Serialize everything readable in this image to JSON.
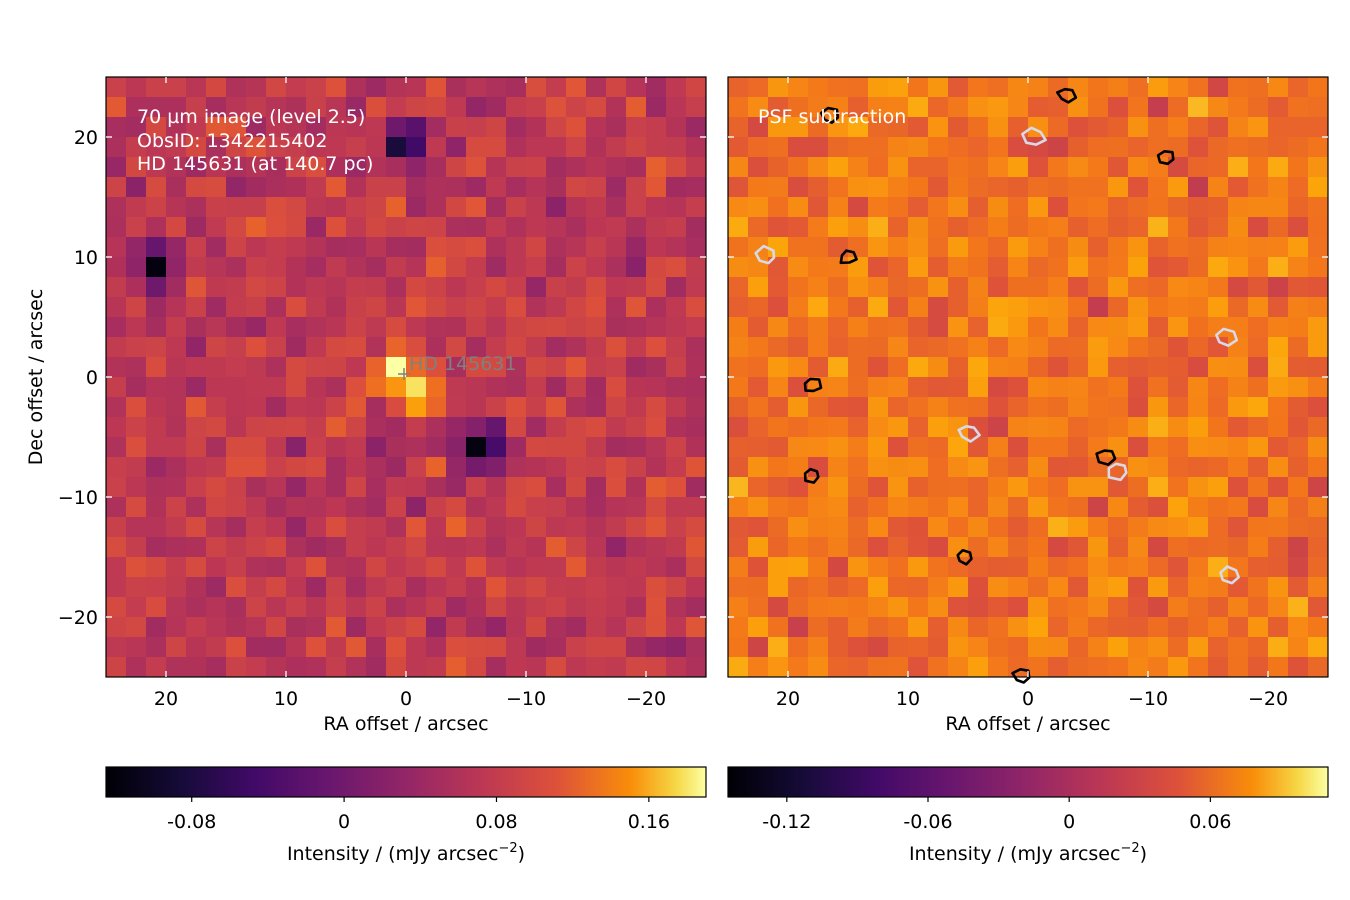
{
  "chart_data": [
    {
      "type": "heatmap",
      "title": "",
      "annotation_lines": [
        "70 µm image (level 2.5)",
        "ObsID: 1342215402",
        "HD 145631 (at 140.7 pc)"
      ],
      "star_marker_label": "HD 145631",
      "xlabel": "RA offset / arcsec",
      "ylabel": "Dec offset / arcsec",
      "xlim": [
        25,
        -25
      ],
      "ylim": [
        -25,
        25
      ],
      "xticks": [
        20,
        10,
        0,
        -10,
        -20
      ],
      "yticks": [
        20,
        10,
        0,
        -10,
        -20
      ],
      "xtick_labels": [
        "20",
        "10",
        "0",
        "−10",
        "−20"
      ],
      "ytick_labels": [
        "20",
        "10",
        "0",
        "−10",
        "−20"
      ],
      "grid_shape": [
        30,
        30
      ],
      "pixel_size_arcsec": 1.6,
      "colormap": "inferno",
      "colorbar": {
        "label": "Intensity / (mJy arcsec−2)",
        "label_text": "Intensity / (mJy arcsec",
        "label_superscript": "−2",
        "label_close": ")",
        "vmin": -0.125,
        "vmax": 0.19,
        "ticks": [
          -0.08,
          0,
          0.08,
          0.16
        ],
        "tick_labels": [
          "-0.08",
          "0",
          "0.08",
          "0.16"
        ]
      },
      "bright_features": [
        {
          "ra": 1.0,
          "dec": 0.5,
          "value": 0.17
        },
        {
          "ra": -1.0,
          "dec": -1.5,
          "value": 0.15
        }
      ],
      "dark_features": [
        {
          "ra": -6.5,
          "dec": -6.0,
          "value": -0.12
        },
        {
          "ra": 0.0,
          "dec": 19.5,
          "value": -0.1
        },
        {
          "ra": 21.0,
          "dec": 9.5,
          "value": -0.1
        }
      ]
    },
    {
      "type": "heatmap",
      "title": "",
      "annotation_lines": [
        "PSF subtraction"
      ],
      "xlabel": "RA offset / arcsec",
      "ylabel": "",
      "xlim": [
        25,
        -25
      ],
      "ylim": [
        -25,
        25
      ],
      "xticks": [
        20,
        10,
        0,
        -10,
        -20
      ],
      "yticks": [
        20,
        10,
        0,
        -10,
        -20
      ],
      "xtick_labels": [
        "20",
        "10",
        "0",
        "−10",
        "−20"
      ],
      "grid_shape": [
        30,
        30
      ],
      "pixel_size_arcsec": 1.6,
      "colormap": "inferno",
      "colorbar": {
        "label": "Intensity / (mJy arcsec−2)",
        "label_text": "Intensity / (mJy arcsec",
        "label_superscript": "−2",
        "label_close": ")",
        "vmin": -0.145,
        "vmax": 0.11,
        "ticks": [
          -0.12,
          -0.06,
          0,
          0.06
        ],
        "tick_labels": [
          "-0.12",
          "-0.06",
          "0",
          "0.06"
        ]
      },
      "contours": {
        "positive_color": "#000000",
        "negative_color": "#d8d8e6",
        "positive_centers": [
          {
            "ra": -3.2,
            "dec": 23.5
          },
          {
            "ra": 16.5,
            "dec": 21.8
          },
          {
            "ra": -11.5,
            "dec": 18.3
          },
          {
            "ra": 15.0,
            "dec": 10.0
          },
          {
            "ra": 18.0,
            "dec": -0.7
          },
          {
            "ra": 18.0,
            "dec": -8.2
          },
          {
            "ra": -6.5,
            "dec": -6.6
          },
          {
            "ra": 5.3,
            "dec": -15.0
          },
          {
            "ra": 0.5,
            "dec": -24.9
          }
        ],
        "negative_centers": [
          {
            "ra": -0.5,
            "dec": 20.0
          },
          {
            "ra": 21.8,
            "dec": 10.1
          },
          {
            "ra": -16.5,
            "dec": 3.3
          },
          {
            "ra": 5.0,
            "dec": -4.6
          },
          {
            "ra": -7.5,
            "dec": -7.8
          },
          {
            "ra": -16.8,
            "dec": -16.5
          }
        ]
      }
    }
  ]
}
